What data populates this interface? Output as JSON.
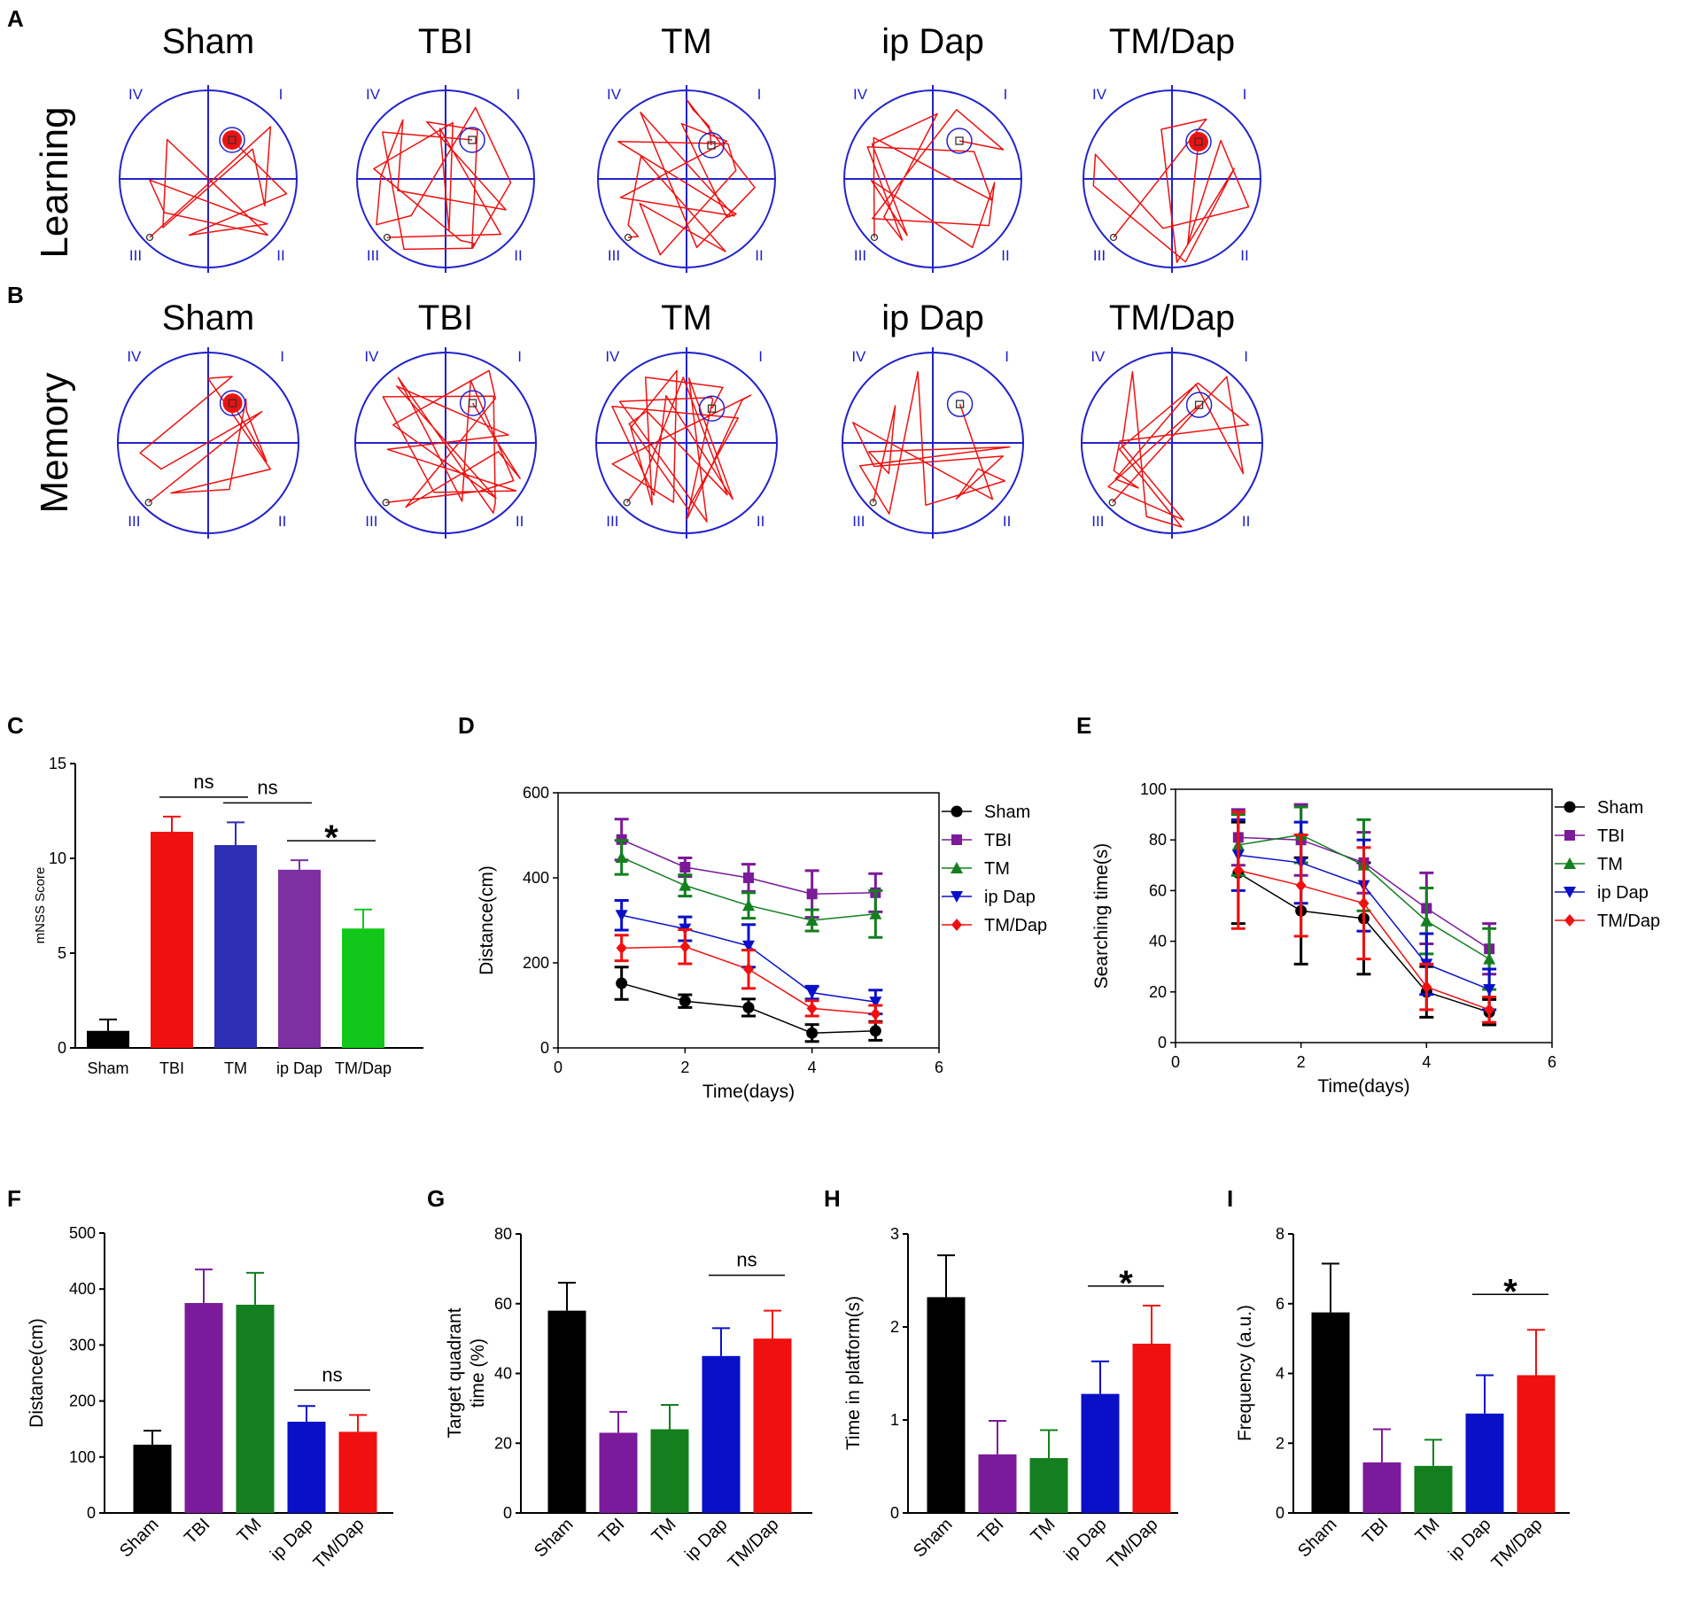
{
  "colors": {
    "Sham": "#000000",
    "TBI": "#7b1a9a",
    "TM": "#137f1f",
    "ip Dap": "#0a10c8",
    "TM/Dap": "#f01010",
    "maze": "#2222cc",
    "track": "#ee1111"
  },
  "maze_panels": {
    "groups": [
      "Sham",
      "TBI",
      "TM",
      "ip Dap",
      "TM/Dap"
    ],
    "quadrant_labels": [
      "IV",
      "I",
      "III",
      "II"
    ],
    "rows": [
      {
        "panel": "A",
        "label": "Learning"
      },
      {
        "panel": "B",
        "label": "Memory"
      }
    ]
  },
  "chart_data": [
    {
      "panel": "C",
      "type": "bar",
      "categories": [
        "Sham",
        "TBI",
        "TM",
        "ip Dap",
        "TM/Dap"
      ],
      "values": [
        0.9,
        11.4,
        10.7,
        9.4,
        6.3
      ],
      "errors": [
        0.6,
        0.8,
        1.2,
        0.5,
        1.0
      ],
      "colors": [
        "#000000",
        "#f01010",
        "#2f2fb5",
        "#7e2fa2",
        "#11c81a"
      ],
      "ylabel": "mNSS Score",
      "ylim": [
        0,
        15
      ],
      "yticks": [
        0,
        5,
        10,
        15
      ],
      "annotations": [
        {
          "from": 1,
          "to": 2,
          "text": "ns"
        },
        {
          "from": 2,
          "to": 3,
          "text": "ns"
        },
        {
          "from": 3,
          "to": 4,
          "text": "*"
        }
      ]
    },
    {
      "panel": "D",
      "type": "line",
      "x": [
        1,
        2,
        3,
        4,
        5
      ],
      "xlabel": "Time(days)",
      "ylabel": "Distance(cm)",
      "xlim": [
        0,
        6
      ],
      "xticks": [
        0,
        2,
        4,
        6
      ],
      "ylim": [
        0,
        600
      ],
      "yticks": [
        0,
        200,
        400,
        600
      ],
      "series": [
        {
          "name": "Sham",
          "values": [
            152,
            110,
            95,
            35,
            40
          ],
          "errors": [
            38,
            15,
            20,
            20,
            22
          ]
        },
        {
          "name": "TBI",
          "values": [
            490,
            425,
            400,
            362,
            365
          ],
          "errors": [
            48,
            22,
            32,
            55,
            45
          ]
        },
        {
          "name": "TM",
          "values": [
            448,
            382,
            335,
            300,
            315
          ],
          "errors": [
            40,
            25,
            30,
            25,
            55
          ]
        },
        {
          "name": "ip Dap",
          "values": [
            312,
            280,
            240,
            130,
            108
          ],
          "errors": [
            35,
            28,
            50,
            15,
            28
          ]
        },
        {
          "name": "TM/Dap",
          "values": [
            235,
            238,
            185,
            93,
            80
          ],
          "errors": [
            30,
            40,
            45,
            18,
            20
          ]
        }
      ]
    },
    {
      "panel": "E",
      "type": "line",
      "x": [
        1,
        2,
        3,
        4,
        5
      ],
      "xlabel": "Time(days)",
      "ylabel": "Searching time(s)",
      "xlim": [
        0,
        6
      ],
      "xticks": [
        0,
        2,
        4,
        6
      ],
      "ylim": [
        0,
        100
      ],
      "yticks": [
        0,
        20,
        40,
        60,
        80,
        100
      ],
      "series": [
        {
          "name": "Sham",
          "values": [
            67,
            52,
            49,
            20,
            12
          ],
          "errors": [
            20,
            21,
            22,
            10,
            5
          ]
        },
        {
          "name": "TBI",
          "values": [
            81,
            80,
            71,
            53,
            37
          ],
          "errors": [
            11,
            14,
            12,
            14,
            10
          ]
        },
        {
          "name": "TM",
          "values": [
            78,
            82,
            70,
            48,
            33
          ],
          "errors": [
            12,
            11,
            18,
            13,
            12
          ]
        },
        {
          "name": "ip Dap",
          "values": [
            74,
            71,
            62,
            31,
            21
          ],
          "errors": [
            14,
            16,
            18,
            12,
            8
          ]
        },
        {
          "name": "TM/Dap",
          "values": [
            68,
            62,
            55,
            22,
            13
          ],
          "errors": [
            23,
            20,
            22,
            9,
            5
          ]
        }
      ]
    },
    {
      "panel": "F",
      "type": "bar",
      "categories": [
        "Sham",
        "TBI",
        "TM",
        "ip Dap",
        "TM/Dap"
      ],
      "values": [
        122,
        375,
        372,
        163,
        145
      ],
      "errors": [
        25,
        60,
        57,
        28,
        30
      ],
      "colors": [
        "#000000",
        "#7b1a9a",
        "#137f1f",
        "#0a10c8",
        "#f01010"
      ],
      "ylabel": "Distance(cm)",
      "ylim": [
        0,
        500
      ],
      "yticks": [
        0,
        100,
        200,
        300,
        400,
        500
      ],
      "annotations": [
        {
          "from": 3,
          "to": 4,
          "text": "ns"
        }
      ]
    },
    {
      "panel": "G",
      "type": "bar",
      "categories": [
        "Sham",
        "TBI",
        "TM",
        "ip Dap",
        "TM/Dap"
      ],
      "values": [
        58,
        23,
        24,
        45,
        50
      ],
      "errors": [
        8,
        6,
        7,
        8,
        8
      ],
      "colors": [
        "#000000",
        "#7b1a9a",
        "#137f1f",
        "#0a10c8",
        "#f01010"
      ],
      "ylabel": [
        "Target quadrant",
        "time (%)"
      ],
      "ylim": [
        0,
        80
      ],
      "yticks": [
        0,
        20,
        40,
        60,
        80
      ],
      "annotations": [
        {
          "from": 3,
          "to": 4,
          "text": "ns"
        }
      ]
    },
    {
      "panel": "H",
      "type": "bar",
      "categories": [
        "Sham",
        "TBI",
        "TM",
        "ip Dap",
        "TM/Dap"
      ],
      "values": [
        2.32,
        0.63,
        0.59,
        1.28,
        1.82
      ],
      "errors": [
        0.45,
        0.36,
        0.3,
        0.35,
        0.41
      ],
      "colors": [
        "#000000",
        "#7b1a9a",
        "#137f1f",
        "#0a10c8",
        "#f01010"
      ],
      "ylabel": "Time in platform(s)",
      "ylim": [
        0,
        3
      ],
      "yticks": [
        0,
        1,
        2,
        3
      ],
      "annotations": [
        {
          "from": 3,
          "to": 4,
          "text": "*"
        }
      ]
    },
    {
      "panel": "I",
      "type": "bar",
      "categories": [
        "Sham",
        "TBI",
        "TM",
        "ip Dap",
        "TM/Dap"
      ],
      "values": [
        5.75,
        1.45,
        1.35,
        2.85,
        3.95
      ],
      "errors": [
        1.4,
        0.95,
        0.75,
        1.1,
        1.3
      ],
      "colors": [
        "#000000",
        "#7b1a9a",
        "#137f1f",
        "#0a10c8",
        "#f01010"
      ],
      "ylabel": "Frequency (a.u.)",
      "ylim": [
        0,
        8
      ],
      "yticks": [
        0,
        2,
        4,
        6,
        8
      ],
      "annotations": [
        {
          "from": 3,
          "to": 4,
          "text": "*"
        }
      ]
    }
  ]
}
